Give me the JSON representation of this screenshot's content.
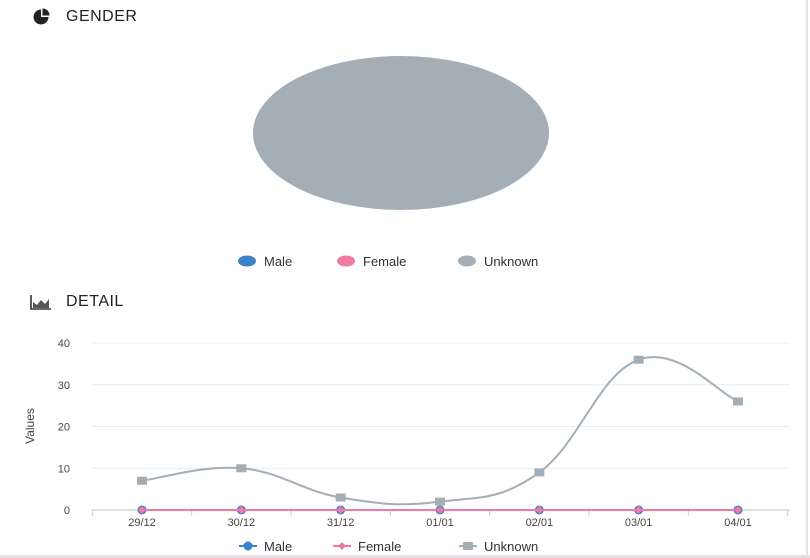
{
  "gender": {
    "title": "GENDER",
    "icon": "pie-chart-icon"
  },
  "detail": {
    "title": "DETAIL",
    "icon": "area-chart-icon"
  },
  "colors": {
    "male": "#3a83c9",
    "female": "#f07aa4",
    "unknown": "#a3aeb6"
  },
  "chart_data": [
    {
      "type": "pie",
      "title": "",
      "series": [
        {
          "name": "Male",
          "value": 0
        },
        {
          "name": "Female",
          "value": 0
        },
        {
          "name": "Unknown",
          "value": 100
        }
      ],
      "legend": "bottom"
    },
    {
      "type": "line",
      "title": "",
      "xlabel": "",
      "ylabel": "Values",
      "categories": [
        "29/12",
        "30/12",
        "31/12",
        "01/01",
        "02/01",
        "03/01",
        "04/01"
      ],
      "ylim": [
        0,
        40
      ],
      "yticks": [
        0,
        10,
        20,
        30,
        40
      ],
      "grid": true,
      "legend": "bottom",
      "series": [
        {
          "name": "Male",
          "values": [
            0,
            0,
            0,
            0,
            0,
            0,
            0
          ]
        },
        {
          "name": "Female",
          "values": [
            0,
            0,
            0,
            0,
            0,
            0,
            0
          ]
        },
        {
          "name": "Unknown",
          "values": [
            7,
            10,
            3,
            2,
            9,
            36,
            26
          ]
        }
      ]
    }
  ]
}
